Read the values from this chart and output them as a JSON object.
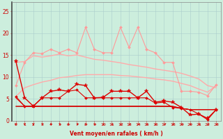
{
  "xlabel": "Vent moyen/en rafales ( km/h )",
  "background_color": "#cceedd",
  "grid_color": "#aacccc",
  "x": [
    0,
    1,
    2,
    3,
    4,
    5,
    6,
    7,
    8,
    9,
    10,
    11,
    12,
    13,
    14,
    15,
    16,
    17,
    18,
    19,
    20,
    21,
    22,
    23
  ],
  "ylim": [
    0,
    27
  ],
  "yticks": [
    0,
    5,
    10,
    15,
    20,
    25
  ],
  "lines": [
    {
      "y": [
        8.0,
        13.3,
        15.5,
        15.3,
        16.3,
        15.5,
        16.3,
        15.5,
        21.3,
        16.3,
        15.5,
        15.5,
        21.3,
        16.7,
        21.3,
        16.3,
        15.5,
        13.3,
        13.3,
        6.7,
        6.7,
        6.5,
        5.7,
        8.2
      ],
      "color": "#ff9999",
      "marker": "D",
      "markersize": 2.0,
      "linewidth": 0.8,
      "zorder": 4
    },
    {
      "y": [
        13.3,
        13.5,
        14.8,
        14.5,
        14.8,
        15.2,
        14.8,
        15.0,
        14.5,
        14.0,
        13.8,
        13.5,
        13.2,
        12.8,
        12.5,
        12.2,
        11.8,
        11.5,
        11.2,
        10.8,
        10.2,
        9.5,
        8.0,
        7.5
      ],
      "color": "#ffaaaa",
      "marker": null,
      "linewidth": 1.0,
      "zorder": 3
    },
    {
      "y": [
        5.5,
        7.5,
        8.2,
        8.8,
        9.2,
        9.8,
        10.0,
        10.3,
        10.5,
        10.5,
        10.5,
        10.5,
        10.3,
        10.2,
        10.0,
        9.8,
        9.5,
        9.3,
        9.0,
        8.5,
        8.0,
        7.2,
        6.5,
        8.0
      ],
      "color": "#ffaaaa",
      "marker": null,
      "linewidth": 1.0,
      "zorder": 2
    },
    {
      "y": [
        13.5,
        5.2,
        3.3,
        5.2,
        6.7,
        7.0,
        6.7,
        8.3,
        8.0,
        5.2,
        5.3,
        6.7,
        6.7,
        6.7,
        5.2,
        6.7,
        4.2,
        4.5,
        4.2,
        3.0,
        1.3,
        1.5,
        0.5,
        2.5
      ],
      "color": "#dd0000",
      "marker": "*",
      "markersize": 4,
      "linewidth": 1.0,
      "zorder": 7
    },
    {
      "y": [
        5.5,
        3.3,
        3.3,
        5.2,
        5.2,
        5.2,
        6.7,
        7.0,
        5.2,
        5.2,
        5.2,
        5.2,
        5.2,
        5.2,
        5.2,
        5.2,
        4.0,
        4.2,
        3.0,
        2.8,
        2.5,
        1.5,
        0.2,
        2.5
      ],
      "color": "#dd0000",
      "marker": "D",
      "markersize": 2.0,
      "linewidth": 0.8,
      "zorder": 6
    },
    {
      "y": [
        5.2,
        3.3,
        3.3,
        3.3,
        3.3,
        3.3,
        3.3,
        3.3,
        3.3,
        3.3,
        3.3,
        3.3,
        3.3,
        3.3,
        3.3,
        3.3,
        3.3,
        3.3,
        3.2,
        2.8,
        2.5,
        2.5,
        2.5,
        2.5
      ],
      "color": "#dd0000",
      "marker": null,
      "linewidth": 0.8,
      "zorder": 5
    },
    {
      "y": [
        3.3,
        3.3,
        3.3,
        3.3,
        3.3,
        3.3,
        3.3,
        3.3,
        3.3,
        3.3,
        3.3,
        3.3,
        3.3,
        3.3,
        3.3,
        3.3,
        3.3,
        3.3,
        3.3,
        2.8,
        2.5,
        2.5,
        2.5,
        2.5
      ],
      "color": "#cc0000",
      "marker": null,
      "linewidth": 0.6,
      "zorder": 4
    },
    {
      "y": [
        3.2,
        3.2,
        3.2,
        3.2,
        3.2,
        3.2,
        3.2,
        3.2,
        3.2,
        3.2,
        3.2,
        3.2,
        3.2,
        3.2,
        3.2,
        3.2,
        3.2,
        3.2,
        3.2,
        2.8,
        2.5,
        2.5,
        2.5,
        2.5
      ],
      "color": "#cc0000",
      "marker": null,
      "linewidth": 0.6,
      "zorder": 3
    }
  ]
}
